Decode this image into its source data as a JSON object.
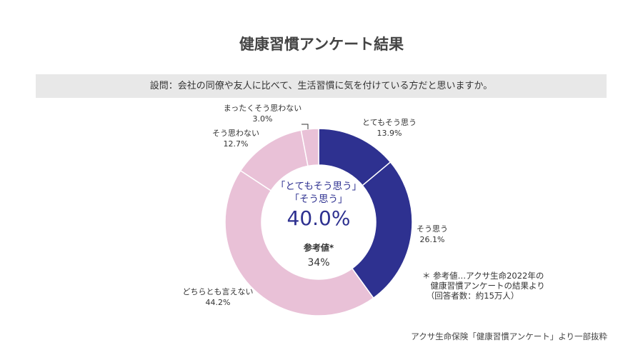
{
  "title": "健康習慣アンケート結果",
  "question": "設問：会社の同僚や友人に比べて、生活習慣に気を付けている方だと思いますか。",
  "chart_data": {
    "type": "pie",
    "donut": true,
    "categories": [
      "とてもそう思う",
      "そう思う",
      "どちらとも言えない",
      "そう思わない",
      "まったくそう思わない"
    ],
    "values": [
      13.9,
      26.1,
      44.2,
      12.7,
      3.0
    ],
    "value_labels": [
      "13.9%",
      "26.1%",
      "44.2%",
      "12.7%",
      "3.0%"
    ],
    "colors": [
      "#2e3190",
      "#2e3190",
      "#e9c1d7",
      "#e9c1d7",
      "#e9c1d7"
    ]
  },
  "center": {
    "line1": "「とてもそう思う」",
    "line2": "「そう思う」",
    "value": "40.0%",
    "ref_label": "参考値*",
    "ref_value": "34%"
  },
  "note": [
    "＊ 参考値…アクサ生命2022年の",
    "　健康習慣アンケートの結果より",
    "　（回答者数：約15万人）"
  ],
  "source": "アクサ生命保険「健康習慣アンケート」より一部抜粋"
}
